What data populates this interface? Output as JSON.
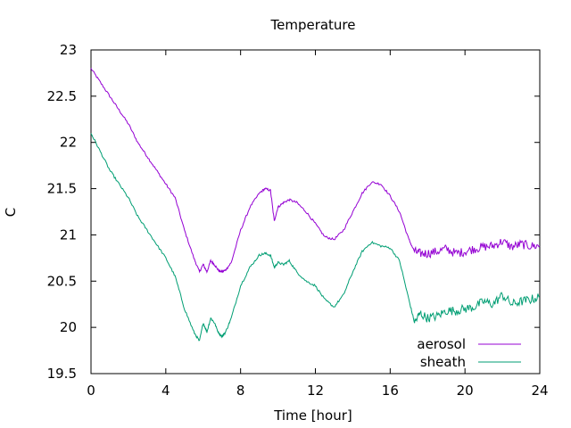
{
  "chart_data": {
    "type": "line",
    "title": "Temperature",
    "xlabel": "Time [hour]",
    "ylabel": "C",
    "xlim": [
      0,
      24
    ],
    "ylim": [
      19.5,
      23
    ],
    "x_ticks": [
      0,
      4,
      8,
      12,
      16,
      20,
      24
    ],
    "y_ticks": [
      19.5,
      20,
      20.5,
      21,
      21.5,
      22,
      22.5,
      23
    ],
    "x_tick_labels": [
      "0",
      "4",
      "8",
      "12",
      "16",
      "20",
      "24"
    ],
    "y_tick_labels": [
      "19.5",
      "20",
      "20.5",
      "21",
      "21.5",
      "22",
      "22.5",
      "23"
    ],
    "grid": false,
    "legend_position": "bottom-right",
    "series": [
      {
        "name": "aerosol",
        "color": "#9400d3",
        "x": [
          0,
          0.5,
          1,
          1.5,
          2,
          2.5,
          3,
          3.5,
          4,
          4.5,
          5,
          5.5,
          5.8,
          6,
          6.2,
          6.4,
          6.6,
          6.8,
          7,
          7.2,
          7.5,
          8,
          8.5,
          9,
          9.3,
          9.6,
          9.8,
          10,
          10.3,
          10.6,
          11,
          11.5,
          12,
          12.5,
          13,
          13.5,
          14,
          14.5,
          15,
          15.5,
          16,
          16.5,
          17,
          17.3,
          17.6,
          18,
          18.5,
          19,
          19.5,
          20,
          20.5,
          21,
          21.5,
          22,
          22.5,
          23,
          23.5,
          24
        ],
        "y": [
          22.8,
          22.65,
          22.5,
          22.35,
          22.2,
          22.0,
          21.85,
          21.7,
          21.55,
          21.4,
          21.05,
          20.75,
          20.6,
          20.68,
          20.6,
          20.72,
          20.68,
          20.62,
          20.6,
          20.62,
          20.7,
          21.05,
          21.3,
          21.45,
          21.5,
          21.48,
          21.15,
          21.3,
          21.35,
          21.38,
          21.35,
          21.25,
          21.12,
          20.98,
          20.95,
          21.05,
          21.25,
          21.45,
          21.57,
          21.55,
          21.42,
          21.25,
          20.95,
          20.82,
          20.8,
          20.8,
          20.82,
          20.85,
          20.8,
          20.82,
          20.85,
          20.87,
          20.88,
          20.93,
          20.87,
          20.9,
          20.88,
          20.88
        ]
      },
      {
        "name": "sheath",
        "color": "#009e73",
        "x": [
          0,
          0.5,
          1,
          1.5,
          2,
          2.5,
          3,
          3.5,
          4,
          4.5,
          5,
          5.5,
          5.8,
          6,
          6.2,
          6.4,
          6.6,
          6.8,
          7,
          7.2,
          7.5,
          8,
          8.5,
          9,
          9.3,
          9.6,
          9.8,
          10,
          10.3,
          10.6,
          11,
          11.5,
          12,
          12.5,
          13,
          13.5,
          14,
          14.5,
          15,
          15.5,
          16,
          16.5,
          17,
          17.3,
          17.6,
          18,
          18.5,
          19,
          19.5,
          20,
          20.5,
          21,
          21.5,
          22,
          22.5,
          23,
          23.5,
          24
        ],
        "y": [
          22.1,
          21.9,
          21.7,
          21.55,
          21.4,
          21.2,
          21.05,
          20.9,
          20.75,
          20.55,
          20.2,
          19.95,
          19.85,
          20.05,
          19.95,
          20.1,
          20.05,
          19.95,
          19.9,
          19.95,
          20.1,
          20.45,
          20.65,
          20.78,
          20.8,
          20.78,
          20.65,
          20.7,
          20.68,
          20.72,
          20.6,
          20.5,
          20.45,
          20.3,
          20.22,
          20.35,
          20.6,
          20.82,
          20.92,
          20.88,
          20.86,
          20.72,
          20.3,
          20.05,
          20.15,
          20.1,
          20.12,
          20.18,
          20.18,
          20.2,
          20.22,
          20.28,
          20.25,
          20.35,
          20.25,
          20.28,
          20.3,
          20.33
        ]
      }
    ]
  }
}
